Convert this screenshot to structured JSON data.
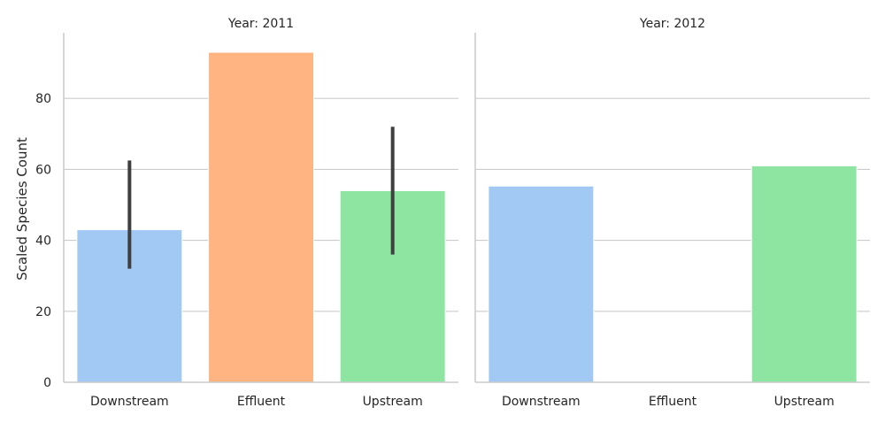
{
  "chart_data": {
    "type": "bar",
    "ylabel": "Scaled Species Count",
    "ylim": [
      0,
      98.5
    ],
    "yticks": [
      0,
      20,
      40,
      60,
      80
    ],
    "categories": [
      "Downstream",
      "Effluent",
      "Upstream"
    ],
    "colors": [
      "#a1c9f4",
      "#ffb482",
      "#8de5a1"
    ],
    "grid": true,
    "panels": [
      {
        "title": "Year: 2011",
        "values": [
          43,
          93,
          54
        ],
        "error_bars": [
          [
            32,
            62.5
          ],
          null,
          [
            36,
            72
          ]
        ]
      },
      {
        "title": "Year: 2012",
        "values": [
          55.3,
          null,
          61
        ]
      }
    ]
  }
}
